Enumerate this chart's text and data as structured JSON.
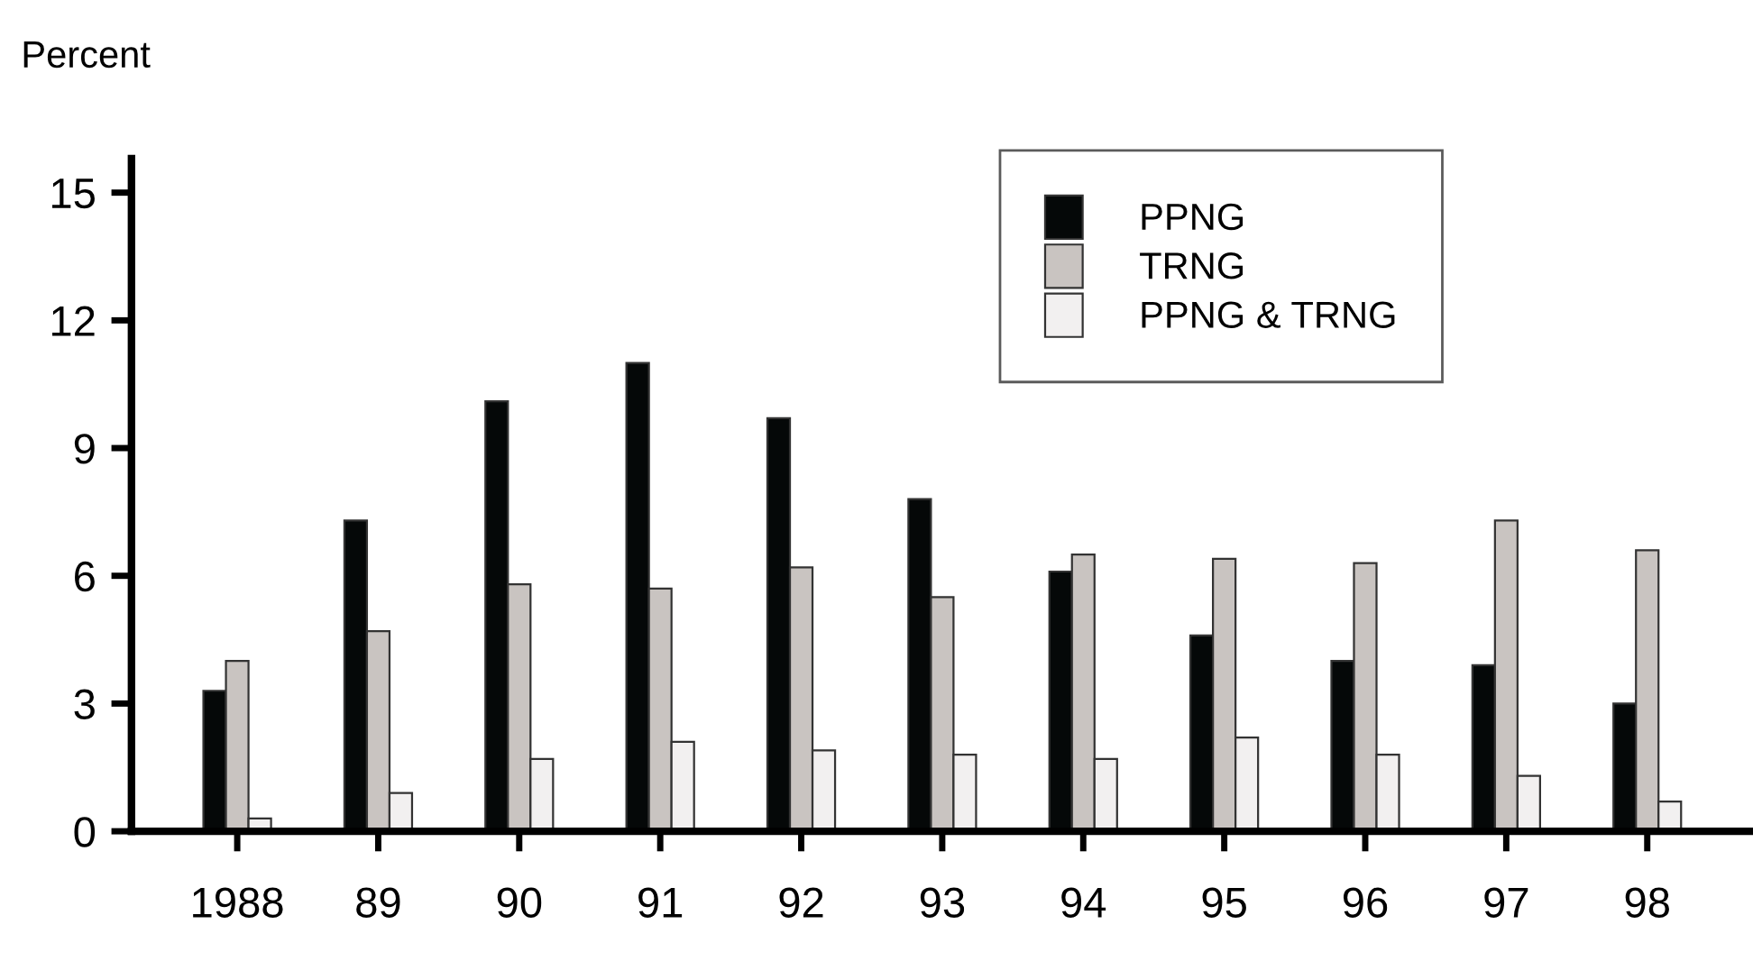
{
  "chart_data": {
    "type": "bar",
    "ylabel": "Percent",
    "categories": [
      "1988",
      "89",
      "90",
      "91",
      "92",
      "93",
      "94",
      "95",
      "96",
      "97",
      "98"
    ],
    "series": [
      {
        "name": "PPNG",
        "color": "#050808",
        "values": [
          3.3,
          7.3,
          10.1,
          11.0,
          9.7,
          7.8,
          6.1,
          4.6,
          4.0,
          3.9,
          3.0
        ]
      },
      {
        "name": "TRNG",
        "color": "#c9c4c1",
        "values": [
          4.0,
          4.7,
          5.8,
          5.7,
          6.2,
          5.5,
          6.5,
          6.4,
          6.3,
          7.3,
          6.6
        ]
      },
      {
        "name": "PPNG & TRNG",
        "color": "#f2f0f0",
        "values": [
          0.3,
          0.9,
          1.7,
          2.1,
          1.9,
          1.8,
          1.7,
          2.2,
          1.8,
          1.3,
          0.7
        ]
      }
    ],
    "ylim": [
      0,
      15.8
    ],
    "yticks": [
      0,
      3,
      6,
      9,
      12,
      15
    ],
    "grid": false,
    "legend": "top right"
  }
}
